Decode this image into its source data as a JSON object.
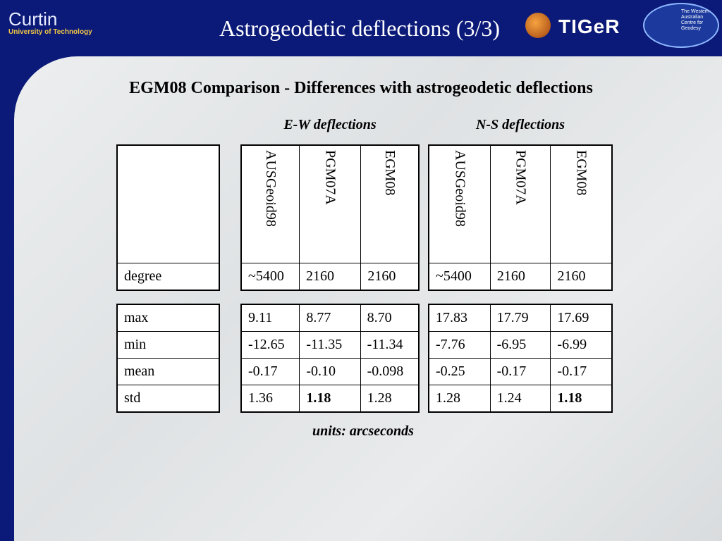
{
  "header": {
    "logo_left": {
      "name": "Curtin",
      "subtitle": "University of Technology"
    },
    "title": "Astrogeodetic deflections (3/3)",
    "logo_right": {
      "name": "TIGeR",
      "subtitle": "The Western Australian Centre for Geodesy"
    }
  },
  "subtitle": "EGM08 Comparison - Differences with astrogeodetic deflections",
  "row_labels": {
    "degree": "degree",
    "stats": [
      "max",
      "min",
      "mean",
      "std"
    ]
  },
  "groups": [
    {
      "label": "E-W deflections",
      "columns": [
        "AUSGeoid98",
        "PGM07A",
        "EGM08"
      ],
      "degree": [
        "~5400",
        "2160",
        "2160"
      ],
      "stats": [
        [
          "9.11",
          "8.77",
          "8.70"
        ],
        [
          "-12.65",
          "-11.35",
          "-11.34"
        ],
        [
          "-0.17",
          "-0.10",
          "-0.098"
        ],
        [
          "1.36",
          "1.18",
          "1.28"
        ]
      ],
      "bold_cells": [
        [
          3,
          1
        ]
      ]
    },
    {
      "label": "N-S deflections",
      "columns": [
        "AUSGeoid98",
        "PGM07A",
        "EGM08"
      ],
      "degree": [
        "~5400",
        "2160",
        "2160"
      ],
      "stats": [
        [
          "17.83",
          "17.79",
          "17.69"
        ],
        [
          "-7.76",
          "-6.95",
          "-6.99"
        ],
        [
          "-0.25",
          "-0.17",
          "-0.17"
        ],
        [
          "1.28",
          "1.24",
          "1.18"
        ]
      ],
      "bold_cells": [
        [
          3,
          2
        ]
      ]
    }
  ],
  "footer": "units: arcseconds"
}
